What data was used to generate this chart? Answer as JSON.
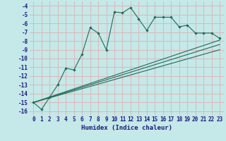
{
  "xlabel": "Humidex (Indice chaleur)",
  "ylabel": "",
  "bg_color": "#c5e8e8",
  "grid_color": "#dbb8b8",
  "line_color": "#1e6b5a",
  "xlim": [
    -0.5,
    23.5
  ],
  "ylim": [
    -16.5,
    -3.5
  ],
  "yticks": [
    -16,
    -15,
    -14,
    -13,
    -12,
    -11,
    -10,
    -9,
    -8,
    -7,
    -6,
    -5,
    -4
  ],
  "xticks": [
    0,
    1,
    2,
    3,
    4,
    5,
    6,
    7,
    8,
    9,
    10,
    11,
    12,
    13,
    14,
    15,
    16,
    17,
    18,
    19,
    20,
    21,
    22,
    23
  ],
  "line1_x": [
    0,
    1,
    2,
    3,
    4,
    5,
    6,
    7,
    8,
    9,
    10,
    11,
    12,
    13,
    14,
    15,
    16,
    17,
    18,
    19,
    20,
    21,
    22,
    23
  ],
  "line1_y": [
    -15.0,
    -15.8,
    -14.4,
    -13.0,
    -11.1,
    -11.3,
    -9.5,
    -6.5,
    -7.1,
    -9.0,
    -4.7,
    -4.8,
    -4.2,
    -5.5,
    -6.8,
    -5.3,
    -5.3,
    -5.3,
    -6.4,
    -6.2,
    -7.1,
    -7.1,
    -7.1,
    -7.7
  ],
  "line2_x": [
    0,
    23
  ],
  "line2_y": [
    -15.0,
    -7.9
  ],
  "line3_x": [
    0,
    23
  ],
  "line3_y": [
    -15.0,
    -8.4
  ],
  "line4_x": [
    0,
    23
  ],
  "line4_y": [
    -15.0,
    -9.0
  ],
  "tick_fontsize": 5.5,
  "xlabel_fontsize": 6.5
}
